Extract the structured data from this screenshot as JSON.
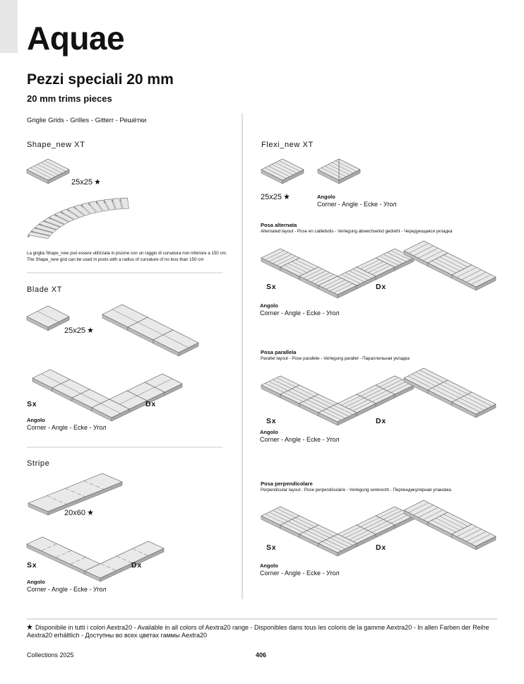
{
  "header": {
    "title": "Aquae",
    "subtitle": "Pezzi speciali 20 mm",
    "subtitle_en": "20 mm trims pieces"
  },
  "grids_label": "Griglie  Grids - Grilles - Gitterr - Решётки",
  "left": [
    {
      "name": "Shape_new XT",
      "size": "25x25",
      "note": [
        "La griglia Shape_new può essere utilizzata in piscine con un raggio di curvatura non inferiore a 150 cm.",
        "The Shape_new grid can be used in pools with a radius of curvature of no less than 150 cm"
      ]
    },
    {
      "name": "Blade XT",
      "size": "25x25",
      "sx": "Sx",
      "dx": "Dx",
      "corner_label": "Angolo",
      "corner_text": "Corner - Angle - Ecke - Угол"
    },
    {
      "name": "Stripe",
      "size": "20x60",
      "sx": "Sx",
      "dx": "Dx",
      "corner_label": "Angolo",
      "corner_text": "Corner - Angle - Ecke - Угол"
    }
  ],
  "right": {
    "name": "Flexi_new XT",
    "size": "25x25",
    "corner_label": "Angolo",
    "corner_text": "Corner - Angle - Ecke - Угол",
    "layouts": [
      {
        "title": "Posa alternata",
        "desc": "Alternated layout - Pose en caillebotis - Verlegung abwechselnd gedreht - Чередующаяся укладка",
        "sx": "Sx",
        "dx": "Dx",
        "corner_label": "Angolo",
        "corner_text": "Corner - Angle - Ecke - Угол"
      },
      {
        "title": "Posa parallela",
        "desc": "Parallel layout - Pose parallele - Verlegung parallel - Параллельная укладка",
        "sx": "Sx",
        "dx": "Dx",
        "corner_label": "Angolo",
        "corner_text": "Corner - Angle - Ecke - Угол"
      },
      {
        "title": "Posa perpendicolare",
        "desc": "Perpendicular layout - Pose perpendiculaire - Verlegung senkrecht - Перпендикулярная упаковка",
        "sx": "Sx",
        "dx": "Dx",
        "corner_label": "Angolo",
        "corner_text": "Corner - Angle - Ecke - Угол"
      }
    ]
  },
  "footer": {
    "note": "Disponibile in tutti i colori Aextra20 - Available in all colors of Aextra20 range - Disponibles dans tous les coloris de la gamme Aextra20 - In allen Farben der Reihe Aextra20 erhältlich - Доступны во всех цветах гаммы Aextra20",
    "collection": "Collections 2025",
    "page": "406"
  }
}
